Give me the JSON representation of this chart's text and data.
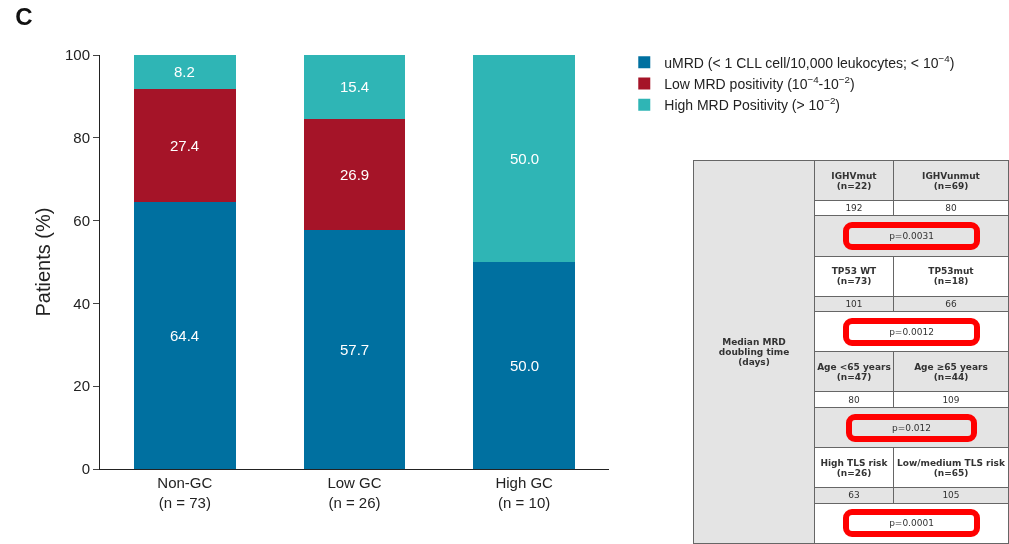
{
  "chart_data": [
    {
      "type": "bar",
      "title": "C",
      "ylabel": "Patients (%)",
      "stacked": true,
      "legend": "top right",
      "grid": false,
      "categories": [
        "Non-GC\n(n = 73)",
        "Low GC\n(n = 26)",
        "High GC\n(n = 10)"
      ],
      "ylim": [
        0,
        100
      ],
      "yticks": [
        0,
        20,
        40,
        60,
        80,
        100
      ],
      "series": [
        {
          "name": "uMRD (< 1 CLL cell/10,000 leukocytes; < 10$^{−4}$)",
          "color": "#0070a0",
          "values": [
            64.4,
            57.7,
            50.0
          ],
          "value_labels": [
            "64.4",
            "57.7",
            "50.0"
          ]
        },
        {
          "name": "Low MRD positivity (10$^{−4}$-10$^{−2}$)",
          "color": "#a51428",
          "values": [
            27.4,
            26.9,
            null
          ],
          "value_labels": [
            "27.4",
            "26.9",
            null
          ]
        },
        {
          "name": "High MRD Positivity (> 10$^{−2}$)",
          "color": "#2fb5b5",
          "values": [
            8.2,
            15.4,
            50.0
          ],
          "value_labels": [
            "8.2",
            "15.4",
            "50.0"
          ]
        }
      ]
    },
    {
      "type": "other",
      "annotations": [
        "Median MRD\ndoubling time\n(days)",
        "IGHVmut\n(n=22)",
        "IGHVunmut\n(n=69)",
        "192",
        "80",
        "p=0.0031",
        "TP53 WT\n(n=73)",
        "TP53mut\n(n=18)",
        "101",
        "66",
        "p=0.0012",
        "Age <65 years\n(n=47)",
        "Age ≥65 years\n(n=44)",
        "80",
        "109",
        "p=0.012",
        "High TLS risk\n(n=26)",
        "Low/medium TLS risk\n(n=65)",
        "63",
        "105",
        "p=0.0001"
      ]
    }
  ]
}
